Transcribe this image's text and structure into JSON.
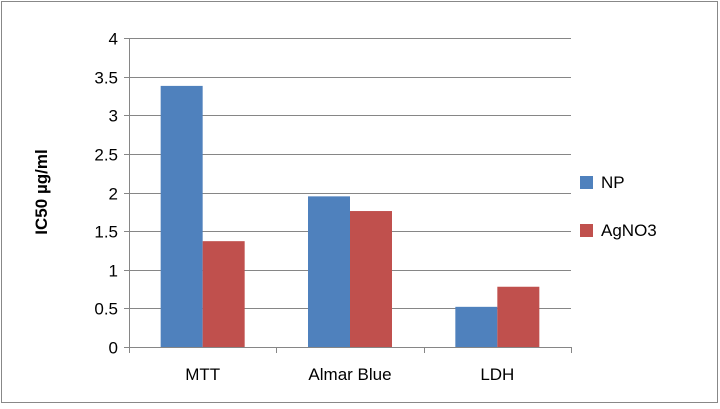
{
  "chart_data": {
    "type": "bar",
    "title": "",
    "xlabel": "",
    "ylabel": "IC50 µg/ml",
    "categories": [
      "MTT",
      "Almar Blue",
      "LDH"
    ],
    "series": [
      {
        "name": "NP",
        "values": [
          3.38,
          1.95,
          0.52
        ],
        "color": "#4f81bd"
      },
      {
        "name": "AgNO3",
        "values": [
          1.37,
          1.76,
          0.78
        ],
        "color": "#c0504d"
      }
    ],
    "ylim": [
      0,
      4
    ],
    "yticks": [
      "0",
      "0.5",
      "1",
      "1.5",
      "2",
      "2.5",
      "3",
      "3.5",
      "4"
    ],
    "grid": true,
    "legend_position": "right"
  }
}
